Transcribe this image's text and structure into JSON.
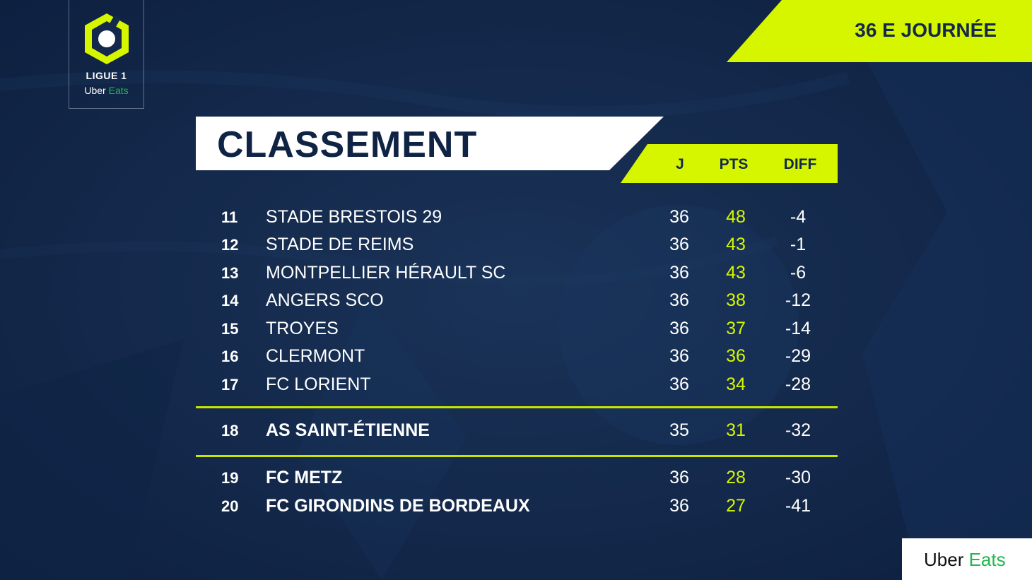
{
  "logo": {
    "title": "LIGUE 1",
    "sponsor_a": "Uber",
    "sponsor_b": "Eats"
  },
  "matchday": "36 E JOURNÉE",
  "title": "CLASSEMENT",
  "columns": {
    "played": "J",
    "points": "PTS",
    "diff": "DIFF"
  },
  "rows": [
    {
      "rank": "11",
      "team": "STADE BRESTOIS 29",
      "played": "36",
      "points": "48",
      "diff": "-4"
    },
    {
      "rank": "12",
      "team": "STADE DE REIMS",
      "played": "36",
      "points": "43",
      "diff": "-1"
    },
    {
      "rank": "13",
      "team": "MONTPELLIER HÉRAULT SC",
      "played": "36",
      "points": "43",
      "diff": "-6"
    },
    {
      "rank": "14",
      "team": "ANGERS SCO",
      "played": "36",
      "points": "38",
      "diff": "-12"
    },
    {
      "rank": "15",
      "team": "TROYES",
      "played": "36",
      "points": "37",
      "diff": "-14"
    },
    {
      "rank": "16",
      "team": "CLERMONT",
      "played": "36",
      "points": "36",
      "diff": "-29"
    },
    {
      "rank": "17",
      "team": "FC LORIENT",
      "played": "36",
      "points": "34",
      "diff": "-28"
    },
    {
      "rank": "18",
      "team": "AS SAINT-ÉTIENNE",
      "played": "35",
      "points": "31",
      "diff": "-32"
    },
    {
      "rank": "19",
      "team": "FC METZ",
      "played": "36",
      "points": "28",
      "diff": "-30"
    },
    {
      "rank": "20",
      "team": "FC GIRONDINS DE BORDEAUX",
      "played": "36",
      "points": "27",
      "diff": "-41"
    }
  ],
  "sponsor": {
    "a": "Uber",
    "b": "Eats"
  },
  "colors": {
    "background": "#13284a",
    "accent": "#d6f600",
    "points": "#d6f600",
    "eats_green": "#1fb84e"
  }
}
